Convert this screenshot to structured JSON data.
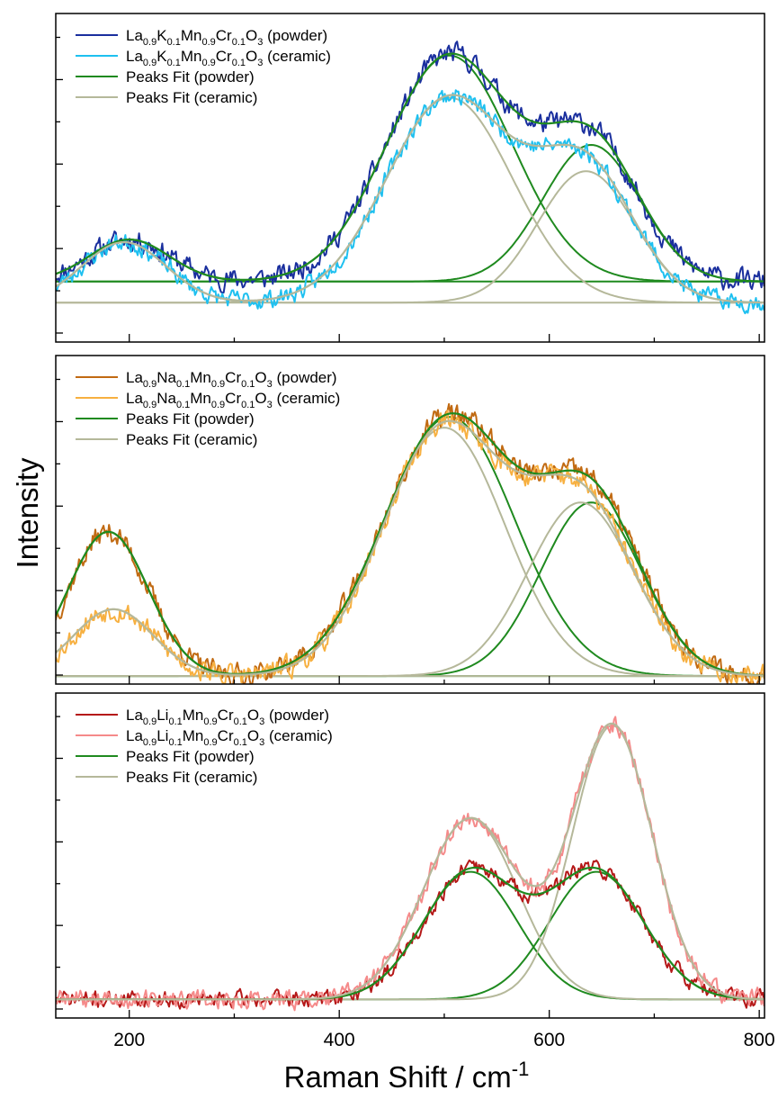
{
  "chart_data": {
    "type": "line",
    "xlabel": "Raman Shift / cm",
    "xlabel_superscript": "-1",
    "ylabel": "Intensity",
    "xlim": [
      130,
      805
    ],
    "x_ticks": [
      200,
      400,
      600,
      800
    ],
    "grid": false,
    "legend_position": "top-left",
    "panels": [
      {
        "id": "K",
        "legend": [
          {
            "parts": [
              [
                "La",
                ""
              ],
              [
                "0.9",
                "sub"
              ],
              [
                "K",
                ""
              ],
              [
                "0.1",
                "sub"
              ],
              [
                "Mn",
                ""
              ],
              [
                "0.9",
                "sub"
              ],
              [
                "Cr",
                ""
              ],
              [
                "0.1",
                "sub"
              ],
              [
                "O",
                ""
              ],
              [
                "3",
                "sub"
              ],
              [
                " (powder)",
                ""
              ]
            ],
            "color": "#1a2f9e"
          },
          {
            "parts": [
              [
                "La",
                ""
              ],
              [
                "0.9",
                "sub"
              ],
              [
                "K",
                ""
              ],
              [
                "0.1",
                "sub"
              ],
              [
                "Mn",
                ""
              ],
              [
                "0.9",
                "sub"
              ],
              [
                "Cr",
                ""
              ],
              [
                "0.1",
                "sub"
              ],
              [
                "O",
                ""
              ],
              [
                "3",
                "sub"
              ],
              [
                " (ceramic)",
                ""
              ]
            ],
            "color": "#1ec0f0"
          },
          {
            "parts": [
              [
                "Peaks Fit (powder)",
                ""
              ]
            ],
            "color": "#1f8a1f"
          },
          {
            "parts": [
              [
                "Peaks Fit (ceramic)",
                ""
              ]
            ],
            "color": "#b5b89a"
          }
        ],
        "ylim": [
          -0.05,
          1.2
        ],
        "series": [
          {
            "name": "La0.9K0.1Mn0.9Cr0.1O3 (powder)",
            "role": "data",
            "color": "#1a2f9e",
            "noise": 0.035,
            "seed": 11,
            "baseline": 0.18,
            "peaks": [
              [
                200,
                0.16,
                38
              ],
              [
                505,
                0.86,
                60
              ],
              [
                640,
                0.52,
                46
              ]
            ],
            "x": [
              130,
              805
            ]
          },
          {
            "name": "La0.9K0.1Mn0.9Cr0.1O3 (ceramic)",
            "role": "data",
            "color": "#1ec0f0",
            "noise": 0.03,
            "seed": 23,
            "baseline": 0.1,
            "peaks": [
              [
                195,
                0.23,
                40
              ],
              [
                505,
                0.78,
                60
              ],
              [
                635,
                0.5,
                46
              ]
            ],
            "x": [
              130,
              805
            ]
          },
          {
            "name": "Peaks Fit (powder)",
            "role": "fit",
            "color": "#1f8a1f",
            "baseline": 0.18,
            "peaks": [
              [
                200,
                0.16,
                38
              ],
              [
                505,
                0.86,
                60
              ],
              [
                640,
                0.52,
                46
              ]
            ],
            "components": true,
            "x": [
              130,
              805
            ]
          },
          {
            "name": "Peaks Fit (ceramic)",
            "role": "fit",
            "color": "#b5b89a",
            "baseline": 0.1,
            "peaks": [
              [
                195,
                0.23,
                40
              ],
              [
                505,
                0.78,
                60
              ],
              [
                635,
                0.5,
                46
              ]
            ],
            "components": true,
            "x": [
              130,
              805
            ]
          }
        ]
      },
      {
        "id": "Na",
        "legend": [
          {
            "parts": [
              [
                "La",
                ""
              ],
              [
                "0.9",
                "sub"
              ],
              [
                "Na",
                ""
              ],
              [
                "0.1",
                "sub"
              ],
              [
                "Mn",
                ""
              ],
              [
                "0.9",
                "sub"
              ],
              [
                "Cr",
                ""
              ],
              [
                "0.1",
                "sub"
              ],
              [
                "O",
                ""
              ],
              [
                "3",
                "sub"
              ],
              [
                " (powder)",
                ""
              ]
            ],
            "color": "#c16a12"
          },
          {
            "parts": [
              [
                "La",
                ""
              ],
              [
                "0.9",
                "sub"
              ],
              [
                "Na",
                ""
              ],
              [
                "0.1",
                "sub"
              ],
              [
                "Mn",
                ""
              ],
              [
                "0.9",
                "sub"
              ],
              [
                "Cr",
                ""
              ],
              [
                "0.1",
                "sub"
              ],
              [
                "O",
                ""
              ],
              [
                "3",
                "sub"
              ],
              [
                " (ceramic)",
                ""
              ]
            ],
            "color": "#f7b040"
          },
          {
            "parts": [
              [
                "Peaks Fit (powder)",
                ""
              ]
            ],
            "color": "#1f8a1f"
          },
          {
            "parts": [
              [
                "Peaks Fit (ceramic)",
                ""
              ]
            ],
            "color": "#b5b89a"
          }
        ],
        "ylim": [
          -0.03,
          1.2
        ],
        "series": [
          {
            "name": "La0.9Na0.1Mn0.9Cr0.1O3 (powder)",
            "role": "data",
            "color": "#c16a12",
            "noise": 0.035,
            "seed": 37,
            "baseline": 0.0,
            "peaks": [
              [
                180,
                0.54,
                38
              ],
              [
                505,
                0.97,
                62
              ],
              [
                640,
                0.65,
                48
              ]
            ],
            "x": [
              130,
              805
            ]
          },
          {
            "name": "La0.9Na0.1Mn0.9Cr0.1O3 (ceramic)",
            "role": "data",
            "color": "#f7b040",
            "noise": 0.035,
            "seed": 53,
            "baseline": 0.0,
            "peaks": [
              [
                185,
                0.25,
                38
              ],
              [
                500,
                0.93,
                58
              ],
              [
                630,
                0.65,
                50
              ]
            ],
            "x": [
              130,
              805
            ]
          },
          {
            "name": "Peaks Fit (powder)",
            "role": "fit",
            "color": "#1f8a1f",
            "baseline": 0.0,
            "peaks": [
              [
                180,
                0.54,
                38
              ],
              [
                505,
                0.97,
                62
              ],
              [
                640,
                0.65,
                48
              ]
            ],
            "components": true,
            "x": [
              130,
              805
            ]
          },
          {
            "name": "Peaks Fit (ceramic)",
            "role": "fit",
            "color": "#b5b89a",
            "baseline": 0.0,
            "peaks": [
              [
                185,
                0.25,
                38
              ],
              [
                500,
                0.93,
                58
              ],
              [
                630,
                0.65,
                50
              ]
            ],
            "components": true,
            "x": [
              130,
              805
            ]
          }
        ]
      },
      {
        "id": "Li",
        "legend": [
          {
            "parts": [
              [
                "La",
                ""
              ],
              [
                "0.9",
                "sub"
              ],
              [
                "Li",
                ""
              ],
              [
                "0.1",
                "sub"
              ],
              [
                "Mn",
                ""
              ],
              [
                "0.9",
                "sub"
              ],
              [
                "Cr",
                ""
              ],
              [
                "0.1",
                "sub"
              ],
              [
                "O",
                ""
              ],
              [
                "3",
                "sub"
              ],
              [
                " (powder)",
                ""
              ]
            ],
            "color": "#b51818"
          },
          {
            "parts": [
              [
                "La",
                ""
              ],
              [
                "0.9",
                "sub"
              ],
              [
                "Li",
                ""
              ],
              [
                "0.1",
                "sub"
              ],
              [
                "Mn",
                ""
              ],
              [
                "0.9",
                "sub"
              ],
              [
                "Cr",
                ""
              ],
              [
                "0.1",
                "sub"
              ],
              [
                "O",
                ""
              ],
              [
                "3",
                "sub"
              ],
              [
                " (ceramic)",
                ""
              ]
            ],
            "color": "#f58a8a"
          },
          {
            "parts": [
              [
                "Peaks Fit (powder)",
                ""
              ]
            ],
            "color": "#1f8a1f"
          },
          {
            "parts": [
              [
                "Peaks Fit (ceramic)",
                ""
              ]
            ],
            "color": "#b5b89a"
          }
        ],
        "ylim": [
          -0.08,
          1.32
        ],
        "series": [
          {
            "name": "La0.9Li0.1Mn0.9Cr0.1O3 (powder)",
            "role": "data",
            "color": "#b51818",
            "noise": 0.03,
            "seed": 71,
            "baseline": 0.0,
            "peaks": [
              [
                525,
                0.55,
                45
              ],
              [
                645,
                0.55,
                45
              ]
            ],
            "x": [
              130,
              805
            ]
          },
          {
            "name": "La0.9Li0.1Mn0.9Cr0.1O3 (ceramic)",
            "role": "data",
            "color": "#f58a8a",
            "noise": 0.035,
            "seed": 89,
            "baseline": 0.0,
            "peaks": [
              [
                525,
                0.78,
                45
              ],
              [
                660,
                1.18,
                38
              ]
            ],
            "x": [
              130,
              805
            ]
          },
          {
            "name": "Peaks Fit (powder)",
            "role": "fit",
            "color": "#1f8a1f",
            "baseline": 0.0,
            "peaks": [
              [
                525,
                0.55,
                45
              ],
              [
                645,
                0.55,
                45
              ]
            ],
            "components": true,
            "x": [
              130,
              805
            ]
          },
          {
            "name": "Peaks Fit (ceramic)",
            "role": "fit",
            "color": "#b5b89a",
            "baseline": 0.0,
            "peaks": [
              [
                525,
                0.78,
                45
              ],
              [
                660,
                1.18,
                38
              ]
            ],
            "components": true,
            "x": [
              130,
              805
            ]
          }
        ]
      }
    ]
  }
}
